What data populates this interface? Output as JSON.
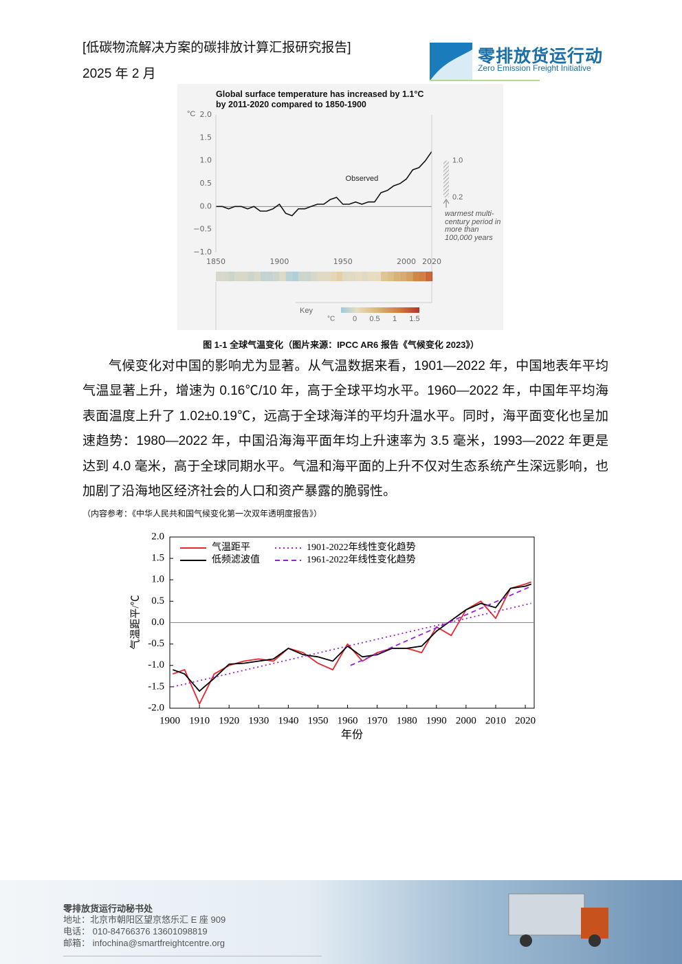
{
  "header": {
    "title": "[低碳物流解决方案的碳排放计算汇报研究报告]",
    "date": "2025 年 2 月",
    "logo_cn": "零排放货运行动",
    "logo_en": "Zero Emission Freight Initiative"
  },
  "figures": [
    {
      "chart_data": {
        "type": "line",
        "title": "Global surface temperature has increased by 1.1°C by 2011-2020 compared to 1850-1900",
        "y_unit": "°C",
        "x": [
          1850,
          1855,
          1860,
          1865,
          1870,
          1875,
          1880,
          1885,
          1890,
          1895,
          1900,
          1905,
          1910,
          1915,
          1920,
          1925,
          1930,
          1935,
          1940,
          1945,
          1950,
          1955,
          1960,
          1965,
          1970,
          1975,
          1980,
          1985,
          1990,
          1995,
          2000,
          2005,
          2010,
          2015,
          2020
        ],
        "series": [
          {
            "name": "Observed",
            "color": "#111111",
            "values": [
              0.0,
              0.0,
              -0.05,
              0.0,
              0.0,
              -0.05,
              0.0,
              -0.1,
              -0.1,
              -0.05,
              0.05,
              -0.15,
              -0.2,
              -0.05,
              -0.05,
              0.0,
              0.05,
              0.05,
              0.15,
              0.2,
              0.05,
              0.05,
              0.1,
              0.05,
              0.1,
              0.1,
              0.3,
              0.35,
              0.45,
              0.5,
              0.6,
              0.8,
              0.85,
              1.0,
              1.2
            ]
          }
        ],
        "xlim": [
          1850,
          2020
        ],
        "xticks": [
          1850,
          1900,
          1950,
          2000,
          2020
        ],
        "ylim": [
          -1,
          2
        ],
        "yticks": [
          {
            "value": -1,
            "label": "−1.0"
          },
          {
            "value": -0.5,
            "label": "−0.5"
          },
          {
            "value": 0,
            "label": "0.0"
          },
          {
            "value": 0.5,
            "label": "0.5"
          },
          {
            "value": 1,
            "label": "1.0"
          },
          {
            "value": 1.5,
            "label": "1.5"
          },
          {
            "value": 2,
            "label": "2.0"
          }
        ],
        "zero_line": true,
        "warming_stripes": true,
        "range_annotation": {
          "low": {
            "value": 0.2,
            "label": "0.2"
          },
          "high": {
            "value": 1,
            "label": "1.0"
          },
          "text": "warmest multi-century period in more than 100,000 years"
        },
        "key": {
          "title": "Key",
          "unit": "°C",
          "ticks": [
            0,
            0.5,
            1,
            1.5
          ]
        }
      },
      "caption": "图 1-1 全球气温变化（图片来源：IPCC AR6 报告《气候变化 2023》）"
    },
    {
      "chart_data": {
        "type": "line",
        "xlabel": "年份",
        "ylabel": "气温距平/℃",
        "x": [
          1901,
          1905,
          1910,
          1915,
          1920,
          1925,
          1930,
          1935,
          1940,
          1945,
          1950,
          1955,
          1960,
          1965,
          1970,
          1975,
          1980,
          1985,
          1990,
          1995,
          2000,
          2005,
          2010,
          2015,
          2020,
          2022
        ],
        "series": [
          {
            "name": "气温距平",
            "color": "#e8262b",
            "style": "solid",
            "values": [
              -1.2,
              -1.1,
              -1.9,
              -1.2,
              -1.0,
              -0.9,
              -0.85,
              -0.9,
              -0.6,
              -0.7,
              -0.95,
              -1.1,
              -0.5,
              -0.9,
              -0.7,
              -0.6,
              -0.6,
              -0.7,
              -0.1,
              -0.3,
              0.3,
              0.5,
              0.1,
              0.8,
              0.9,
              0.95
            ]
          },
          {
            "name": "低频滤波值",
            "color": "#000000",
            "style": "solid",
            "values": [
              -1.1,
              -1.2,
              -1.6,
              -1.3,
              -0.97,
              -0.95,
              -0.9,
              -0.85,
              -0.6,
              -0.75,
              -0.8,
              -0.9,
              -0.55,
              -0.8,
              -0.75,
              -0.6,
              -0.6,
              -0.55,
              -0.2,
              0.05,
              0.3,
              0.45,
              0.35,
              0.8,
              0.85,
              0.9
            ]
          },
          {
            "name": "1901-2022年线性变化趋势",
            "color": "#9b1fd6",
            "style": "dotted",
            "x": [
              1901,
              2022
            ],
            "values": [
              -1.5,
              0.45
            ]
          },
          {
            "name": "1961-2022年线性变化趋势",
            "color": "#9b1fd6",
            "style": "dashed",
            "x": [
              1961,
              2022
            ],
            "values": [
              -1.0,
              0.85
            ]
          }
        ],
        "xlim": [
          1900,
          2023
        ],
        "xticks": [
          1900,
          1910,
          1920,
          1930,
          1940,
          1950,
          1960,
          1970,
          1980,
          1990,
          2000,
          2010,
          2020
        ],
        "ylim": [
          -2,
          2
        ],
        "yticks": [
          {
            "value": -2,
            "label": "-2.0"
          },
          {
            "value": -1.5,
            "label": "-1.5"
          },
          {
            "value": -1,
            "label": "-1.0"
          },
          {
            "value": -0.5,
            "label": "-0.5"
          },
          {
            "value": 0,
            "label": "0.0"
          },
          {
            "value": 0.5,
            "label": "0.5"
          },
          {
            "value": 1,
            "label": "1.0"
          },
          {
            "value": 1.5,
            "label": "1.5"
          },
          {
            "value": 2,
            "label": "2.0"
          }
        ],
        "zero_line": true,
        "legend": "upper left"
      }
    }
  ],
  "paragraph": "气候变化对中国的影响尤为显著。从气温数据来看，1901—2022 年，中国地表年平均气温显著上升，增速为 0.16℃/10 年，高于全球平均水平。1960—2022 年，中国年平均海表面温度上升了 1.02±0.19℃，远高于全球海洋的平均升温水平。同时，海平面变化也呈加速趋势：1980—2022 年，中国沿海海平面年均上升速率为 3.5 毫米，1993—2022 年更是达到 4.0 毫米，高于全球同期水平。气温和海平面的上升不仅对生态系统产生深远影响，也加剧了沿海地区经济社会的人口和资产暴露的脆弱性。",
  "reference": "（内容参考：《中华人民共和国气候变化第一次双年透明度报告》）",
  "footer": {
    "org": "零排放货运行动秘书处",
    "address": "地址：北京市朝阳区望京悠乐汇 E 座 909",
    "phone": "电话： 010-84766376 13601098819",
    "email": "邮箱： infochina@smartfreightcentre.org"
  }
}
